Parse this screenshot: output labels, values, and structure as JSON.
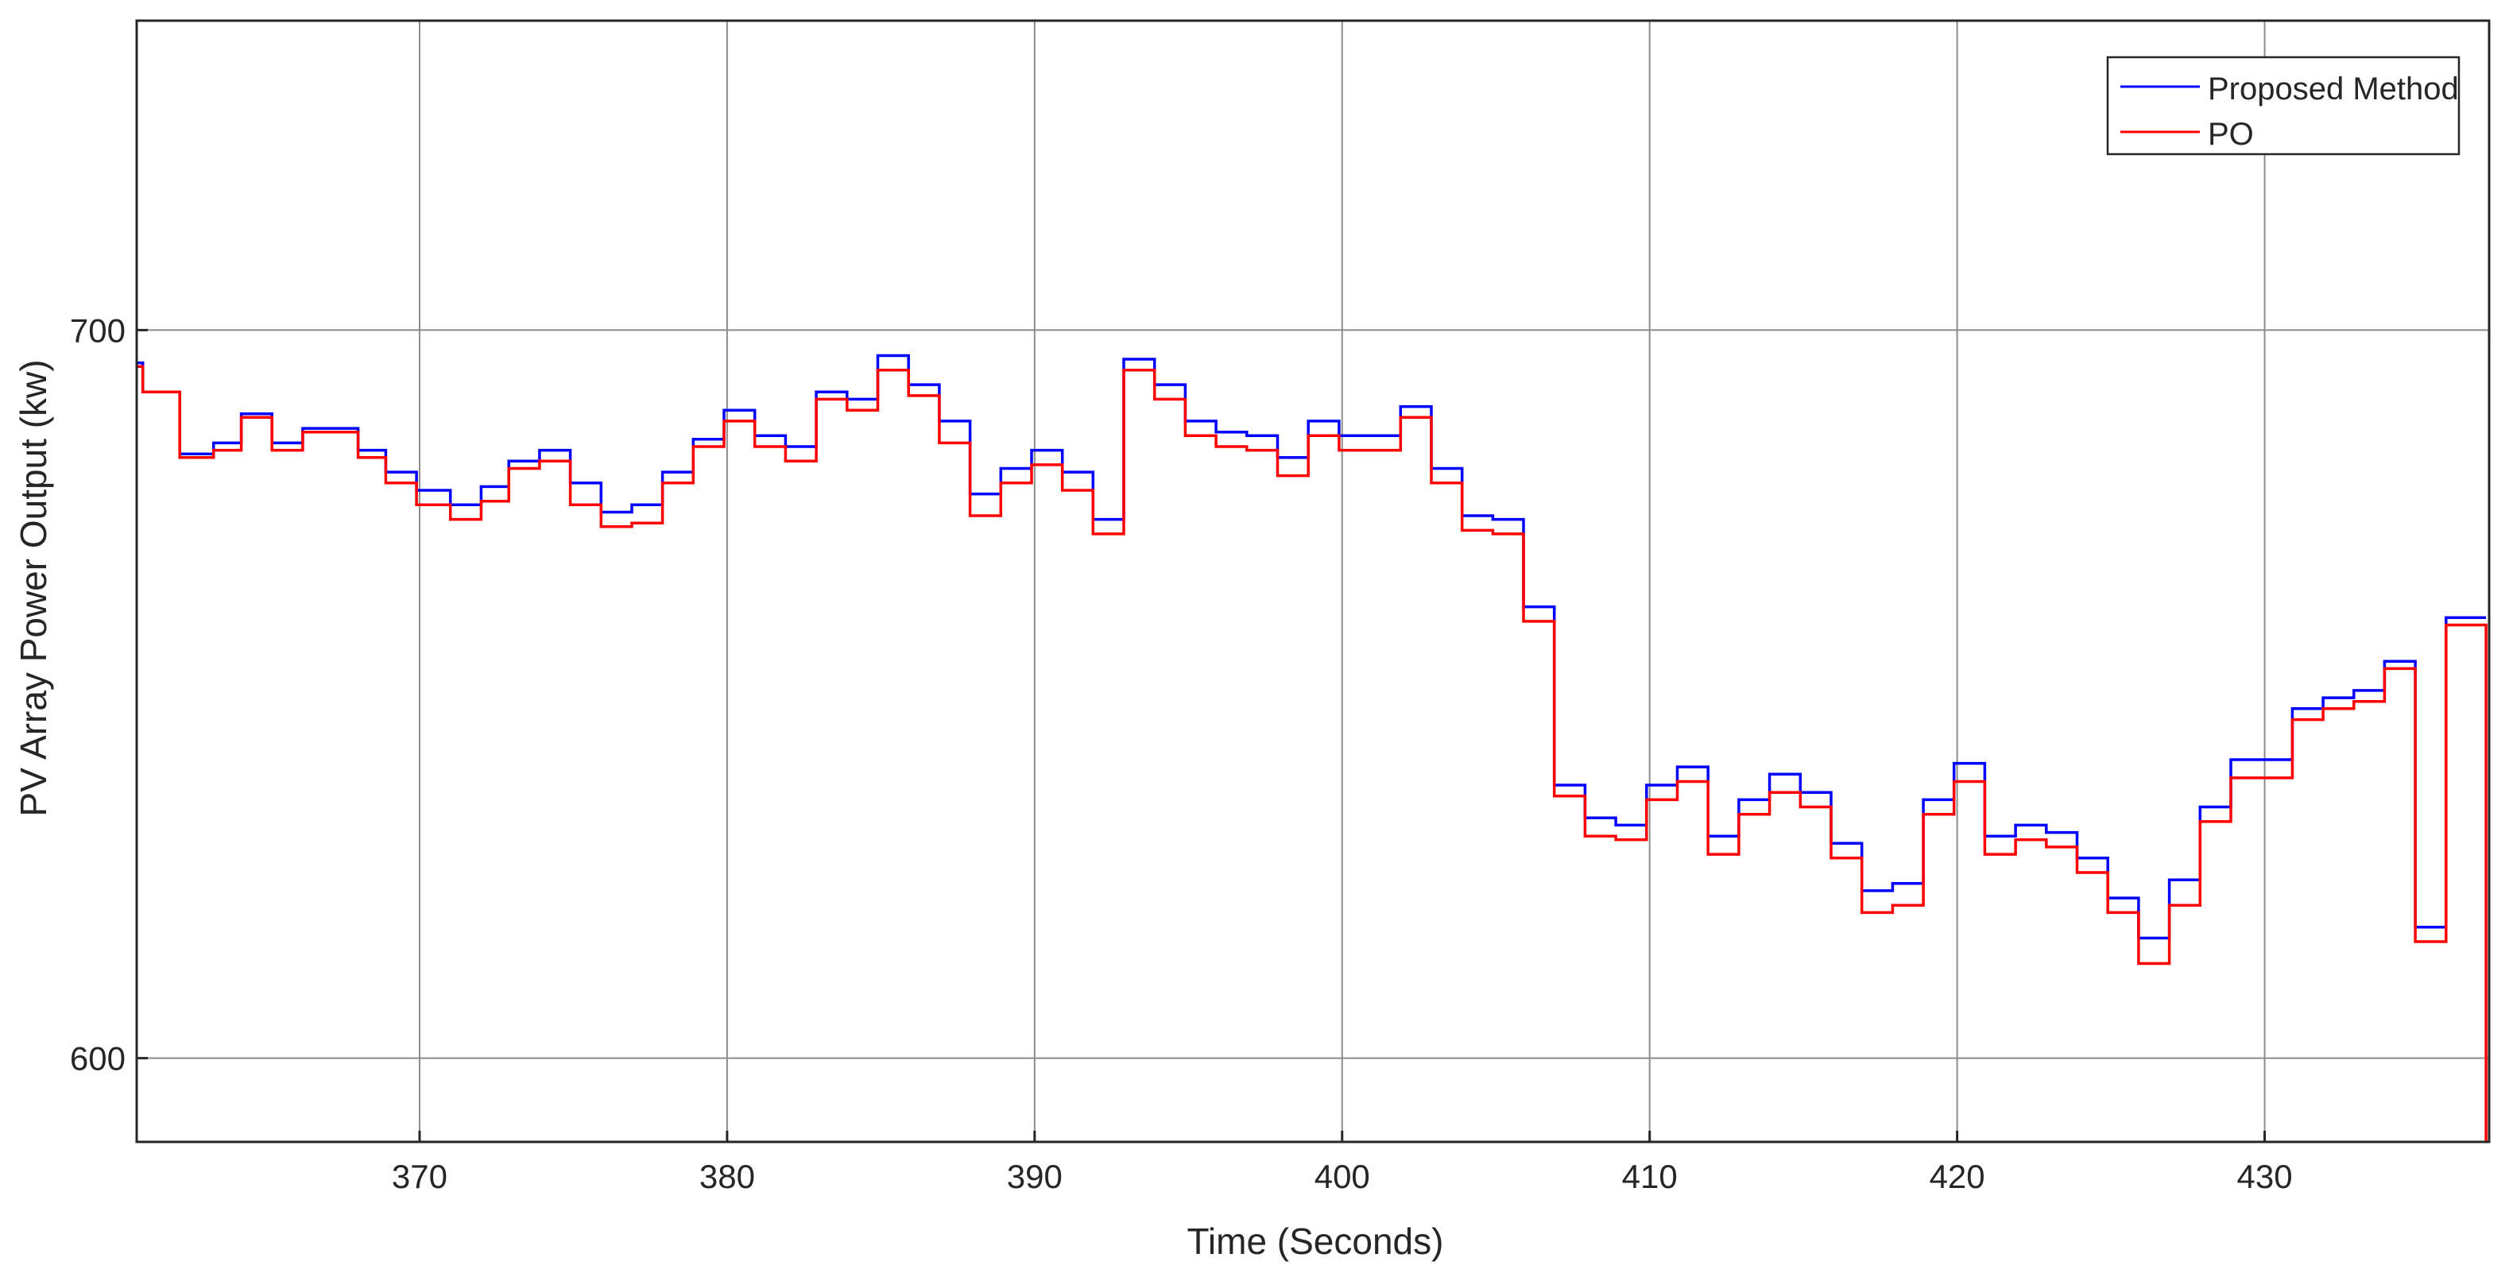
{
  "chart_data": {
    "type": "line",
    "title": "",
    "xlabel": "Time (Seconds)",
    "ylabel": "PV Array Power Output (kw)",
    "xlim": [
      360.8,
      437.3
    ],
    "ylim": [
      588.5,
      742.5
    ],
    "xticks": [
      370,
      380,
      390,
      400,
      410,
      420,
      430
    ],
    "yticks": [
      600,
      700
    ],
    "grid": true,
    "legend_position": "top-right",
    "series": [
      {
        "name": "Proposed Method",
        "color": "#0000ff",
        "x": [
          360.8,
          361.0,
          361.1,
          362.2,
          363.3,
          364.2,
          365.2,
          366.2,
          368.0,
          368.9,
          369.9,
          371.0,
          372.0,
          372.9,
          373.9,
          374.9,
          375.9,
          376.9,
          377.9,
          378.9,
          379.9,
          380.9,
          381.9,
          382.9,
          383.9,
          384.9,
          385.9,
          386.9,
          387.9,
          388.9,
          389.9,
          390.9,
          391.9,
          392.9,
          393.9,
          394.9,
          395.9,
          396.9,
          397.9,
          398.9,
          399.9,
          400.9,
          401.9,
          402.9,
          403.9,
          404.9,
          405.9,
          406.9,
          407.9,
          408.9,
          409.9,
          410.9,
          411.9,
          412.9,
          413.9,
          414.9,
          415.9,
          416.9,
          417.9,
          418.9,
          419.9,
          420.9,
          421.9,
          422.9,
          423.9,
          424.9,
          425.9,
          426.9,
          427.9,
          428.9,
          429.9,
          430.9,
          431.9,
          432.9,
          433.9,
          434.9,
          435.9,
          436.9,
          437.2
        ],
        "y": [
          695.5,
          691.5,
          691.5,
          683.0,
          684.5,
          688.5,
          684.5,
          686.5,
          683.5,
          680.5,
          678.0,
          676.0,
          678.5,
          682.0,
          683.5,
          679.0,
          675.0,
          676.0,
          680.5,
          685.0,
          689.0,
          685.5,
          684.0,
          691.5,
          690.5,
          696.5,
          692.5,
          687.5,
          677.5,
          681.0,
          683.5,
          680.5,
          674.0,
          696.0,
          692.5,
          687.5,
          686.0,
          685.5,
          682.5,
          687.5,
          685.5,
          685.5,
          689.5,
          681.0,
          674.5,
          674.0,
          662.0,
          637.5,
          633.0,
          632.0,
          637.5,
          640.0,
          630.5,
          635.5,
          639.0,
          636.5,
          629.5,
          623.0,
          624.0,
          635.5,
          640.5,
          630.5,
          632.0,
          631.0,
          627.5,
          622.0,
          616.5,
          624.5,
          634.5,
          641.0,
          641.0,
          648.0,
          649.5,
          650.5,
          654.5,
          618.0,
          660.5,
          660.5,
          660.5
        ]
      },
      {
        "name": "PO",
        "color": "#ff0000",
        "x": [
          360.8,
          361.0,
          361.1,
          362.2,
          363.3,
          364.2,
          365.2,
          366.2,
          368.0,
          368.9,
          369.9,
          371.0,
          372.0,
          372.9,
          373.9,
          374.9,
          375.9,
          376.9,
          377.9,
          378.9,
          379.9,
          380.9,
          381.9,
          382.9,
          383.9,
          384.9,
          385.9,
          386.9,
          387.9,
          388.9,
          389.9,
          390.9,
          391.9,
          392.9,
          393.9,
          394.9,
          395.9,
          396.9,
          397.9,
          398.9,
          399.9,
          400.9,
          401.9,
          402.9,
          403.9,
          404.9,
          405.9,
          406.9,
          407.9,
          408.9,
          409.9,
          410.9,
          411.9,
          412.9,
          413.9,
          414.9,
          415.9,
          416.9,
          417.9,
          418.9,
          419.9,
          420.9,
          421.9,
          422.9,
          423.9,
          424.9,
          425.9,
          426.9,
          427.9,
          428.9,
          429.9,
          430.9,
          431.9,
          432.9,
          433.9,
          434.9,
          435.9,
          436.9,
          437.2
        ],
        "y": [
          695.0,
          691.5,
          691.5,
          682.5,
          683.5,
          688.0,
          683.5,
          686.0,
          682.5,
          679.0,
          676.0,
          674.0,
          676.5,
          681.0,
          682.0,
          676.0,
          673.0,
          673.5,
          679.0,
          684.0,
          687.5,
          684.0,
          682.0,
          690.5,
          689.0,
          694.5,
          691.0,
          684.5,
          674.5,
          679.0,
          681.5,
          678.0,
          672.0,
          694.5,
          690.5,
          685.5,
          684.0,
          683.5,
          680.0,
          685.5,
          683.5,
          683.5,
          688.0,
          679.0,
          672.5,
          672.0,
          660.0,
          636.0,
          630.5,
          630.0,
          635.5,
          638.0,
          628.0,
          633.5,
          636.5,
          634.5,
          627.5,
          620.0,
          621.0,
          633.5,
          638.0,
          628.0,
          630.0,
          629.0,
          625.5,
          620.0,
          613.0,
          621.0,
          632.5,
          638.5,
          638.5,
          646.5,
          648.0,
          649.0,
          653.5,
          616.0,
          659.5,
          659.5,
          588.5
        ]
      }
    ]
  }
}
